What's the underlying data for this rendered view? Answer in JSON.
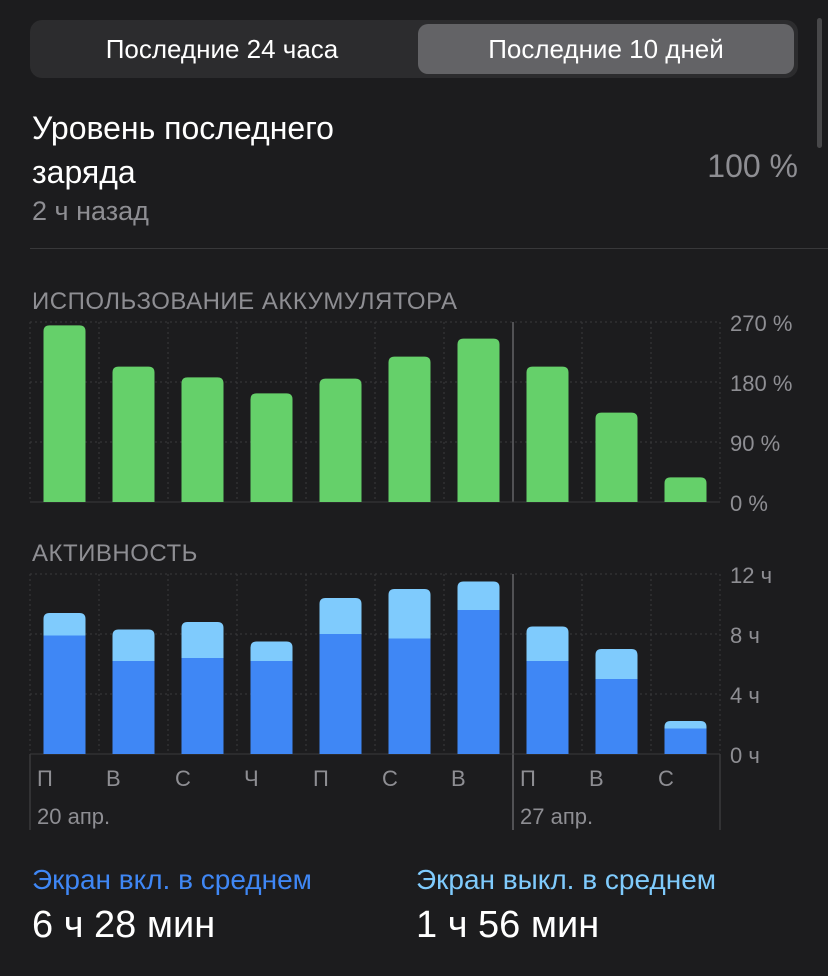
{
  "tabs": [
    {
      "label": "Последние 24 часа",
      "selected": false
    },
    {
      "label": "Последние 10 дней",
      "selected": true
    }
  ],
  "last_charge": {
    "title": "Уровень последнего заряда",
    "time": "2 ч назад",
    "value": "100 %"
  },
  "colors": {
    "battery_bar": "#65d06a",
    "screen_on": "#3f87f5",
    "screen_off": "#7fcbfd",
    "grid": "#3a3a3c",
    "axis_text": "#8e8e93"
  },
  "chart_data": [
    {
      "type": "bar",
      "title": "ИСПОЛЬЗОВАНИЕ АККУМУЛЯТОРА",
      "categories": [
        "П",
        "В",
        "С",
        "Ч",
        "П",
        "С",
        "В",
        "П",
        "В",
        "С"
      ],
      "values": [
        265,
        203,
        187,
        163,
        185,
        218,
        245,
        203,
        134,
        37
      ],
      "ylim": [
        0,
        270
      ],
      "yticks": [
        0,
        90,
        180,
        270
      ],
      "ytick_labels": [
        "0 %",
        "90 %",
        "180 %",
        "270 %"
      ],
      "grid": true
    },
    {
      "type": "bar",
      "stacked": true,
      "title": "АКТИВНОСТЬ",
      "categories": [
        "П",
        "В",
        "С",
        "Ч",
        "П",
        "С",
        "В",
        "П",
        "В",
        "С"
      ],
      "week_labels": [
        {
          "index": 0,
          "label": "20 апр."
        },
        {
          "index": 7,
          "label": "27 апр."
        }
      ],
      "series": [
        {
          "name": "Экран вкл. в среднем",
          "values": [
            7.9,
            6.2,
            6.4,
            6.2,
            8.0,
            7.7,
            9.6,
            6.2,
            5.0,
            1.7
          ]
        },
        {
          "name": "Экран выкл. в среднем",
          "values": [
            1.5,
            2.1,
            2.4,
            1.3,
            2.4,
            3.3,
            1.9,
            2.3,
            2.0,
            0.5
          ]
        }
      ],
      "ylim": [
        0,
        12
      ],
      "yticks": [
        0,
        4,
        8,
        12
      ],
      "ytick_labels": [
        "0 ч",
        "4 ч",
        "8 ч",
        "12 ч"
      ],
      "grid": true
    }
  ],
  "averages": {
    "screen_on_label": "Экран вкл. в среднем",
    "screen_on_value": "6 ч 28 мин",
    "screen_off_label": "Экран выкл. в среднем",
    "screen_off_value": "1 ч 56 мин"
  }
}
